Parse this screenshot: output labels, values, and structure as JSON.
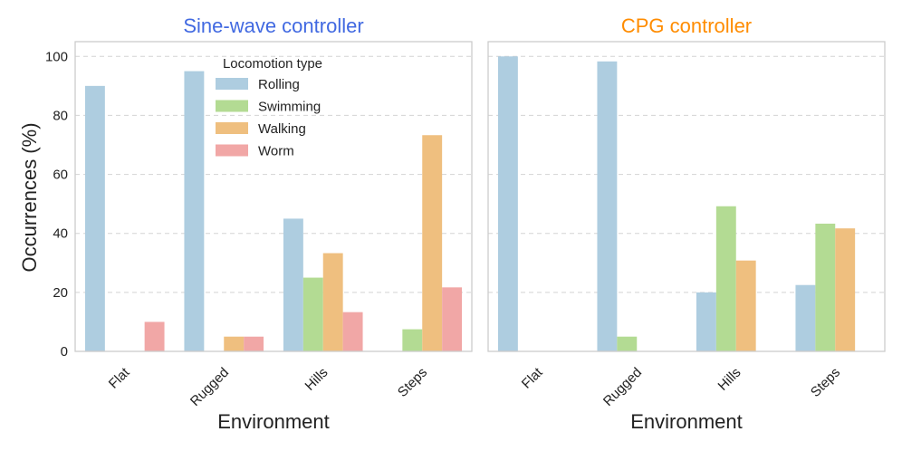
{
  "figure": {
    "ylabel": "Occurrences (%)",
    "legend_title": "Locomotion type"
  },
  "chart_data": [
    {
      "type": "bar",
      "title": "Sine-wave controller",
      "title_color": "#4169e1",
      "xlabel": "Environment",
      "ylabel": "Occurrences (%)",
      "ylim": [
        0,
        105
      ],
      "yticks": [
        0,
        20,
        40,
        60,
        80,
        100
      ],
      "grid": true,
      "legend": "top-center",
      "categories": [
        "Flat",
        "Rugged",
        "Hills",
        "Steps"
      ],
      "series": [
        {
          "name": "Rolling",
          "color": "#aecde0",
          "values": [
            90,
            95,
            45,
            0
          ]
        },
        {
          "name": "Swimming",
          "color": "#b3db93",
          "values": [
            0,
            0,
            25,
            7.5
          ]
        },
        {
          "name": "Walking",
          "color": "#efbf7f",
          "values": [
            0,
            5,
            33.3,
            73.3
          ]
        },
        {
          "name": "Worm",
          "color": "#f1a7a6",
          "values": [
            10,
            5,
            13.3,
            21.7
          ]
        }
      ]
    },
    {
      "type": "bar",
      "title": "CPG controller",
      "title_color": "#ff8c00",
      "xlabel": "Environment",
      "ylabel": "",
      "ylim": [
        0,
        105
      ],
      "yticks": [
        0,
        20,
        40,
        60,
        80,
        100
      ],
      "grid": true,
      "categories": [
        "Flat",
        "Rugged",
        "Hills",
        "Steps"
      ],
      "series": [
        {
          "name": "Rolling",
          "color": "#aecde0",
          "values": [
            100,
            98.3,
            20,
            22.5
          ]
        },
        {
          "name": "Swimming",
          "color": "#b3db93",
          "values": [
            0,
            5,
            49.2,
            43.3
          ]
        },
        {
          "name": "Walking",
          "color": "#efbf7f",
          "values": [
            0,
            0,
            30.8,
            41.7
          ]
        },
        {
          "name": "Worm",
          "color": "#f1a7a6",
          "values": [
            0,
            0,
            0,
            0
          ]
        }
      ]
    }
  ]
}
